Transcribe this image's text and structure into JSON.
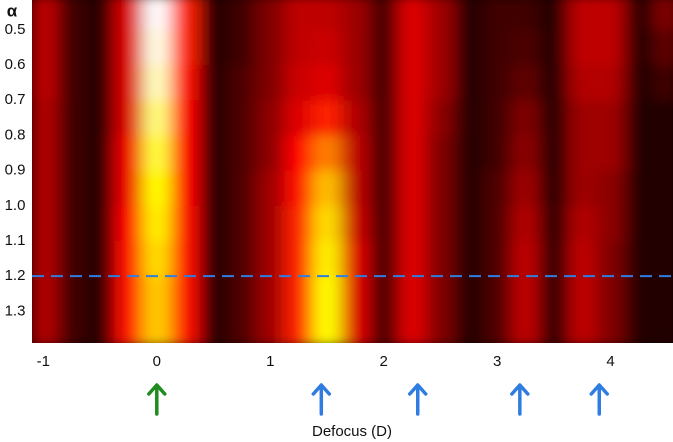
{
  "chart_data": {
    "type": "heatmap",
    "xlabel": "Defocus (D)",
    "ylabel": "α",
    "xlim": [
      -1.1,
      4.55
    ],
    "ylim": [
      0.415,
      1.39
    ],
    "y_inverted": true,
    "xticks": [
      -1,
      0,
      1,
      2,
      3,
      4
    ],
    "yticks": [
      0.5,
      0.6,
      0.7,
      0.8,
      0.9,
      {
        "value": 1,
        "label": "1.0"
      },
      1.1,
      1.2,
      1.3
    ],
    "colormap": "hot",
    "xbins": [
      -1.125,
      -0.875,
      -0.625,
      -0.375,
      -0.125,
      0.125,
      0.375,
      0.625,
      0.875,
      1.125,
      1.375,
      1.625,
      1.875,
      2.125,
      2.375,
      2.625,
      2.875,
      3.125,
      3.375,
      3.625,
      3.875,
      4.125,
      4.375,
      4.625
    ],
    "ybins": [
      0.4,
      0.5,
      0.6,
      0.7,
      0.8,
      0.9,
      1.0,
      1.1,
      1.2,
      1.3,
      1.4
    ],
    "z": [
      [
        0.3,
        0.1,
        0.05,
        0.35,
        1.0,
        0.45,
        0.05,
        0.1,
        0.2,
        0.3,
        0.3,
        0.25,
        0.1,
        0.35,
        0.25,
        0.05,
        0.1,
        0.1,
        0.05,
        0.3,
        0.3,
        0.05,
        0.2
      ],
      [
        0.3,
        0.1,
        0.05,
        0.35,
        0.98,
        0.45,
        0.05,
        0.1,
        0.2,
        0.3,
        0.32,
        0.25,
        0.1,
        0.35,
        0.25,
        0.05,
        0.1,
        0.12,
        0.05,
        0.3,
        0.3,
        0.05,
        0.15
      ],
      [
        0.3,
        0.1,
        0.05,
        0.35,
        0.95,
        0.42,
        0.05,
        0.12,
        0.2,
        0.32,
        0.35,
        0.25,
        0.1,
        0.35,
        0.25,
        0.05,
        0.1,
        0.15,
        0.05,
        0.28,
        0.28,
        0.05,
        0.1
      ],
      [
        0.28,
        0.1,
        0.05,
        0.35,
        0.9,
        0.4,
        0.05,
        0.12,
        0.22,
        0.35,
        0.45,
        0.28,
        0.1,
        0.35,
        0.22,
        0.05,
        0.1,
        0.2,
        0.05,
        0.25,
        0.25,
        0.05,
        0.05
      ],
      [
        0.28,
        0.1,
        0.05,
        0.38,
        0.85,
        0.4,
        0.05,
        0.12,
        0.22,
        0.4,
        0.6,
        0.3,
        0.1,
        0.35,
        0.2,
        0.05,
        0.1,
        0.22,
        0.05,
        0.25,
        0.25,
        0.05,
        0.05
      ],
      [
        0.28,
        0.1,
        0.05,
        0.38,
        0.8,
        0.4,
        0.05,
        0.12,
        0.25,
        0.42,
        0.7,
        0.3,
        0.1,
        0.35,
        0.2,
        0.05,
        0.12,
        0.25,
        0.05,
        0.25,
        0.22,
        0.05,
        0.05
      ],
      [
        0.28,
        0.1,
        0.05,
        0.4,
        0.78,
        0.42,
        0.05,
        0.12,
        0.25,
        0.45,
        0.75,
        0.32,
        0.1,
        0.35,
        0.2,
        0.05,
        0.12,
        0.28,
        0.05,
        0.28,
        0.22,
        0.05,
        0.05
      ],
      [
        0.28,
        0.1,
        0.05,
        0.42,
        0.75,
        0.42,
        0.05,
        0.12,
        0.25,
        0.45,
        0.78,
        0.35,
        0.1,
        0.35,
        0.2,
        0.05,
        0.12,
        0.3,
        0.05,
        0.3,
        0.2,
        0.05,
        0.05
      ],
      [
        0.28,
        0.1,
        0.05,
        0.42,
        0.72,
        0.42,
        0.05,
        0.12,
        0.25,
        0.45,
        0.8,
        0.35,
        0.1,
        0.35,
        0.2,
        0.05,
        0.12,
        0.3,
        0.05,
        0.3,
        0.2,
        0.05,
        0.05
      ],
      [
        0.28,
        0.1,
        0.05,
        0.42,
        0.72,
        0.42,
        0.05,
        0.12,
        0.25,
        0.45,
        0.8,
        0.35,
        0.1,
        0.35,
        0.2,
        0.05,
        0.12,
        0.3,
        0.05,
        0.3,
        0.2,
        0.05,
        0.05
      ]
    ],
    "hline": {
      "y": 1.2,
      "color": "#2f7de1"
    },
    "arrows": [
      {
        "x": 0,
        "color": "#1e8c1e"
      },
      {
        "x": 1.45,
        "color": "#2f7de1"
      },
      {
        "x": 2.3,
        "color": "#2f7de1"
      },
      {
        "x": 3.2,
        "color": "#2f7de1"
      },
      {
        "x": 3.9,
        "color": "#2f7de1"
      }
    ]
  }
}
